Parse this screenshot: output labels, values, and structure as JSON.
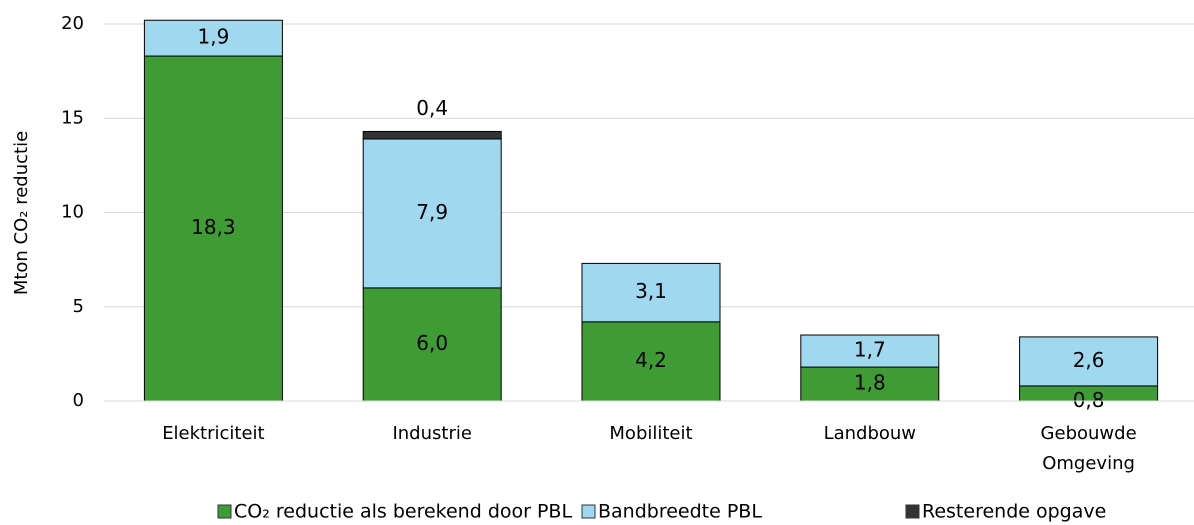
{
  "chart_data": {
    "type": "stacked_bar",
    "y_label": "Mton CO₂ reductie",
    "categories": [
      "Elektriciteit",
      "Industrie",
      "Mobiliteit",
      "Landbouw",
      "Gebouwde Omgeving"
    ],
    "series": [
      {
        "name": "CO₂ reductie als berekend door PBL",
        "color": "#3f9c35",
        "values": [
          18.3,
          6.0,
          4.2,
          1.8,
          0.8
        ],
        "value_labels": [
          "18,3",
          "6,0",
          "4,2",
          "1,8",
          "0,8"
        ]
      },
      {
        "name": "Bandbreedte PBL",
        "color": "#a0d8ef",
        "values": [
          1.9,
          7.9,
          3.1,
          1.7,
          2.6
        ],
        "value_labels": [
          "1,9",
          "7,9",
          "3,1",
          "1,7",
          "2,6"
        ]
      },
      {
        "name": "Resterende opgave",
        "color": "#333333",
        "values": [
          null,
          0.4,
          null,
          null,
          null
        ],
        "value_labels": [
          null,
          "0,4",
          null,
          null,
          null
        ]
      }
    ],
    "ylim": [
      0,
      20
    ],
    "yticks": [
      0,
      5,
      10,
      15,
      20
    ],
    "grid": true,
    "legend": "bottom"
  }
}
